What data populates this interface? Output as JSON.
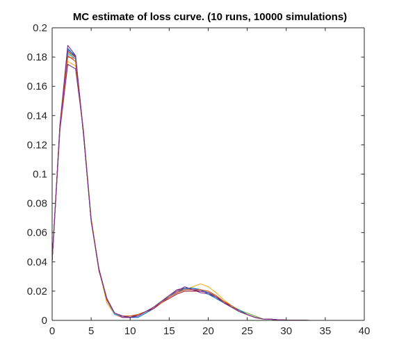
{
  "chart_data": {
    "type": "line",
    "title": "MC estimate of loss curve. (10 runs, 10000 simulations)",
    "xlabel": "",
    "ylabel": "",
    "xlim": [
      0,
      40
    ],
    "ylim": [
      0,
      0.2
    ],
    "x_ticks": [
      0,
      5,
      10,
      15,
      20,
      25,
      30,
      35,
      40
    ],
    "y_ticks": [
      0,
      0.02,
      0.04,
      0.06,
      0.08,
      0.1,
      0.12,
      0.14,
      0.16,
      0.18,
      0.2
    ],
    "x_tick_labels": [
      "0",
      "5",
      "10",
      "15",
      "20",
      "25",
      "30",
      "35",
      "40"
    ],
    "y_tick_labels": [
      "0",
      "0.02",
      "0.04",
      "0.06",
      "0.08",
      "0.1",
      "0.12",
      "0.14",
      "0.16",
      "0.18",
      "0.2"
    ],
    "grid": false,
    "box": true,
    "x": [
      0,
      1,
      2,
      3,
      4,
      5,
      6,
      7,
      8,
      9,
      10,
      11,
      12,
      13,
      14,
      15,
      16,
      17,
      18,
      19,
      20,
      21,
      22,
      23,
      24,
      25,
      26,
      27,
      28,
      29,
      30,
      31,
      32,
      33,
      34,
      35,
      36,
      37,
      38,
      39
    ],
    "series": [
      {
        "color": "#0072BD",
        "values": [
          0.041,
          0.133,
          0.186,
          0.18,
          0.128,
          0.068,
          0.035,
          0.015,
          0.005,
          0.003,
          0.002,
          0.002,
          0.005,
          0.008,
          0.012,
          0.016,
          0.019,
          0.021,
          0.022,
          0.021,
          0.019,
          0.016,
          0.012,
          0.009,
          0.006,
          0.004,
          0.002,
          0.001,
          0.0008,
          0.0004,
          0.0002,
          0.0001,
          0.0001,
          0,
          0,
          0,
          0,
          0,
          0,
          0
        ]
      },
      {
        "color": "#D95319",
        "values": [
          0.041,
          0.132,
          0.18,
          0.179,
          0.129,
          0.068,
          0.035,
          0.014,
          0.004,
          0.002,
          0.002,
          0.004,
          0.006,
          0.009,
          0.013,
          0.017,
          0.02,
          0.022,
          0.022,
          0.021,
          0.019,
          0.016,
          0.012,
          0.009,
          0.006,
          0.004,
          0.002,
          0.001,
          0.0008,
          0.0004,
          0.0002,
          0.0001,
          0.0001,
          0,
          0,
          0,
          0,
          0,
          0,
          0
        ]
      },
      {
        "color": "#EDB120",
        "values": [
          0.041,
          0.131,
          0.177,
          0.174,
          0.131,
          0.07,
          0.035,
          0.012,
          0.004,
          0.003,
          0.003,
          0.004,
          0.006,
          0.009,
          0.012,
          0.016,
          0.019,
          0.021,
          0.023,
          0.025,
          0.023,
          0.019,
          0.014,
          0.01,
          0.006,
          0.004,
          0.002,
          0.001,
          0.0008,
          0.0004,
          0.0002,
          0.0001,
          0.0001,
          0,
          0,
          0,
          0,
          0,
          0,
          0
        ]
      },
      {
        "color": "#7E2F8E",
        "values": [
          0.041,
          0.13,
          0.175,
          0.172,
          0.13,
          0.068,
          0.034,
          0.015,
          0.005,
          0.002,
          0.002,
          0.003,
          0.006,
          0.009,
          0.013,
          0.017,
          0.021,
          0.022,
          0.021,
          0.019,
          0.018,
          0.016,
          0.013,
          0.01,
          0.007,
          0.004,
          0.002,
          0.001,
          0.0008,
          0.0004,
          0.0002,
          0.0001,
          0.0001,
          0,
          0,
          0,
          0,
          0,
          0,
          0
        ]
      },
      {
        "color": "#77AC30",
        "values": [
          0.041,
          0.133,
          0.183,
          0.179,
          0.129,
          0.068,
          0.035,
          0.015,
          0.004,
          0.003,
          0.003,
          0.004,
          0.006,
          0.009,
          0.012,
          0.016,
          0.019,
          0.021,
          0.022,
          0.021,
          0.019,
          0.017,
          0.012,
          0.01,
          0.007,
          0.005,
          0.003,
          0.001,
          0.0008,
          0.0004,
          0.0002,
          0.0001,
          0.0001,
          0,
          0,
          0,
          0,
          0,
          0,
          0
        ]
      },
      {
        "color": "#4DBEEE",
        "values": [
          0.041,
          0.133,
          0.182,
          0.179,
          0.129,
          0.068,
          0.035,
          0.014,
          0.004,
          0.003,
          0.003,
          0.003,
          0.006,
          0.009,
          0.013,
          0.017,
          0.019,
          0.021,
          0.022,
          0.021,
          0.019,
          0.016,
          0.012,
          0.009,
          0.006,
          0.004,
          0.002,
          0.001,
          0.0008,
          0.0004,
          0.0002,
          0.0001,
          0.0001,
          0,
          0,
          0,
          0,
          0,
          0,
          0
        ]
      },
      {
        "color": "#A2142F",
        "values": [
          0.041,
          0.132,
          0.184,
          0.18,
          0.128,
          0.069,
          0.034,
          0.015,
          0.005,
          0.003,
          0.002,
          0.004,
          0.006,
          0.008,
          0.012,
          0.015,
          0.018,
          0.02,
          0.02,
          0.02,
          0.019,
          0.016,
          0.013,
          0.009,
          0.006,
          0.004,
          0.002,
          0.001,
          0.0008,
          0.0004,
          0.0002,
          0.0001,
          0.0001,
          0,
          0,
          0,
          0,
          0,
          0,
          0
        ]
      },
      {
        "color": "#0072BD",
        "values": [
          0.041,
          0.133,
          0.185,
          0.181,
          0.129,
          0.068,
          0.035,
          0.014,
          0.005,
          0.003,
          0.002,
          0.003,
          0.006,
          0.009,
          0.013,
          0.016,
          0.019,
          0.022,
          0.022,
          0.021,
          0.018,
          0.015,
          0.012,
          0.009,
          0.007,
          0.004,
          0.002,
          0.001,
          0.0008,
          0.0004,
          0.0002,
          0.0001,
          0.0001,
          0,
          0,
          0,
          0,
          0,
          0,
          0
        ]
      },
      {
        "color": "#D95319",
        "values": [
          0.041,
          0.132,
          0.181,
          0.177,
          0.129,
          0.069,
          0.035,
          0.014,
          0.005,
          0.003,
          0.003,
          0.004,
          0.006,
          0.009,
          0.012,
          0.016,
          0.019,
          0.021,
          0.021,
          0.021,
          0.02,
          0.017,
          0.013,
          0.01,
          0.006,
          0.004,
          0.002,
          0.001,
          0.0008,
          0.0004,
          0.0002,
          0.0001,
          0.0001,
          0,
          0,
          0,
          0,
          0,
          0,
          0
        ]
      },
      {
        "color": "#7E2F8E",
        "values": [
          0.041,
          0.134,
          0.188,
          0.181,
          0.129,
          0.068,
          0.035,
          0.015,
          0.005,
          0.003,
          0.002,
          0.003,
          0.006,
          0.009,
          0.013,
          0.017,
          0.02,
          0.023,
          0.021,
          0.02,
          0.019,
          0.016,
          0.012,
          0.009,
          0.006,
          0.004,
          0.002,
          0.001,
          0.0008,
          0.0004,
          0.0002,
          0.0001,
          0.0001,
          0,
          0,
          0,
          0,
          0,
          0,
          0
        ]
      }
    ]
  }
}
